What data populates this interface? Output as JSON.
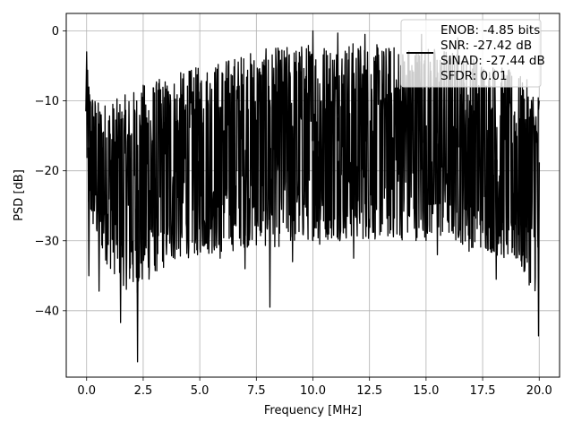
{
  "chart_data": {
    "type": "line",
    "xlabel": "Frequency [MHz]",
    "ylabel": "PSD [dB]",
    "xlim": [
      -0.9,
      20.9
    ],
    "ylim": [
      -49.5,
      2.5
    ],
    "xticks": [
      0,
      2.5,
      5,
      7.5,
      10,
      12.5,
      15,
      17.5,
      20
    ],
    "xtick_labels": [
      "0.0",
      "2.5",
      "5.0",
      "7.5",
      "10.0",
      "12.5",
      "15.0",
      "17.5",
      "20.0"
    ],
    "yticks": [
      0,
      -10,
      -20,
      -30,
      -40
    ],
    "ytick_labels": [
      "0",
      "−10",
      "−20",
      "−30",
      "−40"
    ],
    "grid": true,
    "legend_placement": "top-right",
    "line_color": "#000000",
    "series": [
      {
        "legend_lines": [
          "ENOB: -4.85 bits",
          "SNR: -27.42 dB",
          "SINAD: -27.44 dB",
          "SFDR: 0.01"
        ],
        "envelope": {
          "x": [
            0.0,
            0.05,
            0.2,
            0.5,
            1.0,
            1.5,
            2.0,
            2.5,
            3.0,
            4.0,
            5.0,
            6.0,
            7.0,
            8.0,
            9.0,
            10.0,
            11.0,
            12.0,
            13.0,
            14.0,
            15.0,
            16.0,
            17.0,
            18.0,
            19.0,
            19.95,
            20.0
          ],
          "max": [
            -3,
            -6,
            -8,
            -10,
            -10,
            -9.5,
            -8.5,
            -7.5,
            -7,
            -6,
            -5,
            -4,
            -3,
            -2.5,
            -2,
            -1.5,
            -1.5,
            -1.5,
            -2,
            -2,
            -2,
            -2.5,
            -3.5,
            -4.5,
            -6,
            -8,
            -9
          ],
          "min": [
            -20,
            -26,
            -28,
            -31,
            -34,
            -36,
            -38,
            -37,
            -35,
            -33,
            -32,
            -32,
            -31,
            -31,
            -31,
            -30,
            -30,
            -30,
            -30,
            -30,
            -30,
            -30,
            -31,
            -32,
            -34,
            -38,
            -16
          ]
        },
        "dips": [
          {
            "x": 0.1,
            "y": -35
          },
          {
            "x": 0.55,
            "y": -37.2
          },
          {
            "x": 1.5,
            "y": -41.7
          },
          {
            "x": 2.25,
            "y": -47.3
          },
          {
            "x": 3.0,
            "y": -33.5
          },
          {
            "x": 4.9,
            "y": -32
          },
          {
            "x": 5.9,
            "y": -32.5
          },
          {
            "x": 7.0,
            "y": -34
          },
          {
            "x": 8.1,
            "y": -39.5
          },
          {
            "x": 9.1,
            "y": -33
          },
          {
            "x": 10.3,
            "y": -30.5
          },
          {
            "x": 11.8,
            "y": -32.5
          },
          {
            "x": 15.5,
            "y": -32
          },
          {
            "x": 16.9,
            "y": -31.5
          },
          {
            "x": 18.1,
            "y": -35.5
          },
          {
            "x": 19.3,
            "y": -31.5
          },
          {
            "x": 19.97,
            "y": -43.6
          }
        ],
        "peaks": [
          {
            "x": 0.0,
            "y": -3
          },
          {
            "x": 10.0,
            "y": 0
          },
          {
            "x": 11.1,
            "y": -0.3
          },
          {
            "x": 12.3,
            "y": -0.5
          },
          {
            "x": 14.8,
            "y": -0.5
          },
          {
            "x": 16.4,
            "y": -1
          }
        ]
      }
    ]
  }
}
